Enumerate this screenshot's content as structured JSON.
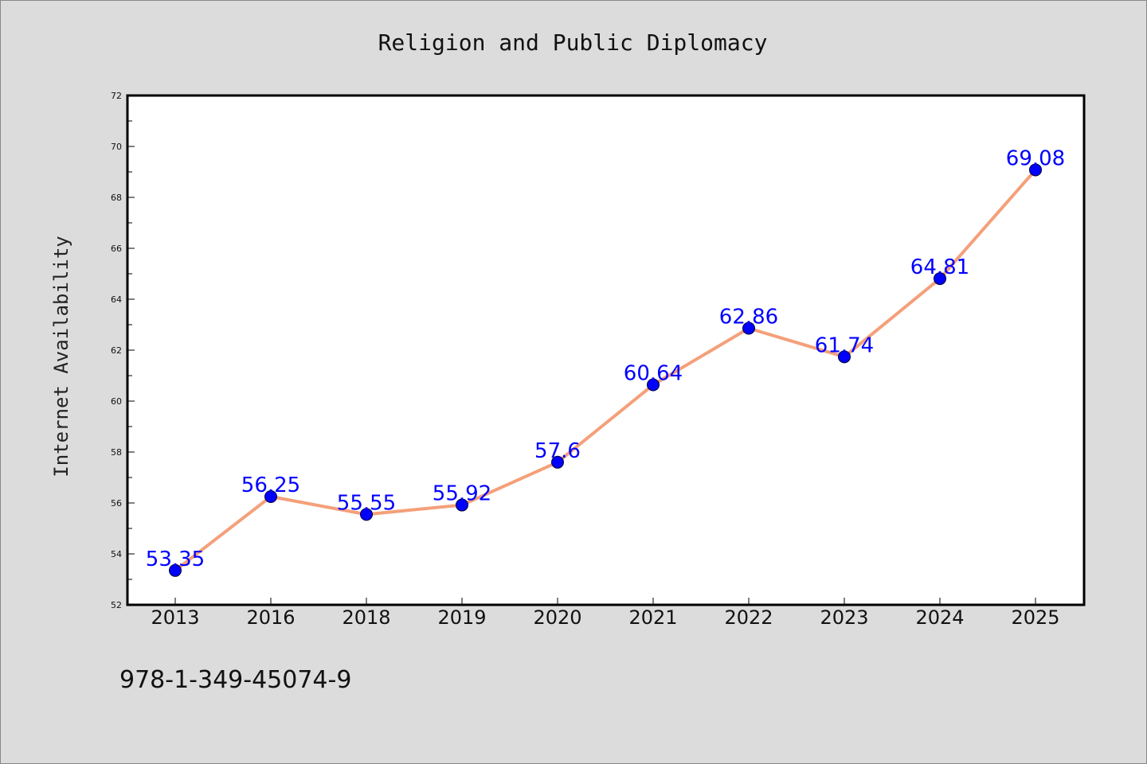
{
  "chart_data": {
    "type": "line",
    "title": "Religion and Public Diplomacy",
    "xlabel": "",
    "ylabel": "Internet Availability",
    "categories": [
      "2013",
      "2016",
      "2018",
      "2019",
      "2020",
      "2021",
      "2022",
      "2023",
      "2024",
      "2025"
    ],
    "series": [
      {
        "values": [
          53.35,
          56.25,
          55.55,
          55.92,
          57.6,
          60.64,
          62.86,
          61.74,
          64.81,
          69.08
        ],
        "labels": [
          "53.35",
          "56.25",
          "55.55",
          "55.92",
          "57.6",
          "60.64",
          "62.86",
          "61.74",
          "64.81",
          "69.08"
        ],
        "line_color": "#f4a07a",
        "marker_color": "#0000ff"
      }
    ],
    "ylim": [
      52,
      72
    ],
    "yticks": [
      "52",
      "54",
      "56",
      "58",
      "60",
      "62",
      "64",
      "66",
      "68",
      "70",
      "72"
    ],
    "grid": false,
    "legend": "none",
    "label_color": "#0000ff"
  },
  "caption": "978-1-349-45074-9",
  "colors": {
    "background": "#dcdcdc",
    "plot_background": "#ffffff",
    "axes": "#000000"
  }
}
